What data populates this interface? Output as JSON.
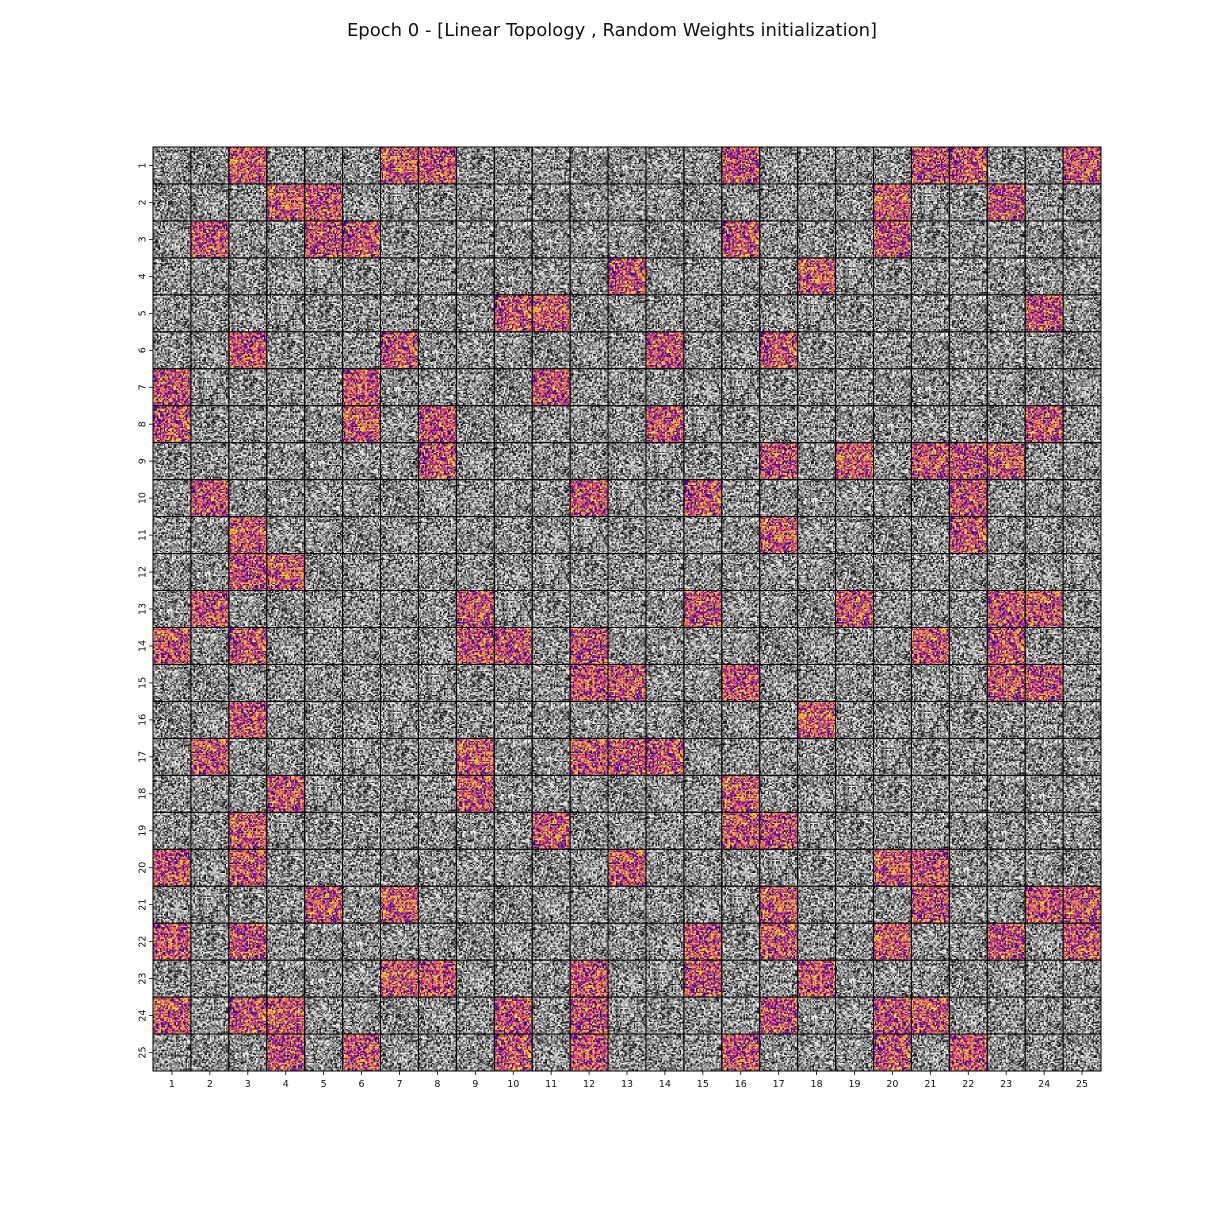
{
  "chart_data": {
    "type": "heatmap",
    "title": "Epoch 0 - [Linear Topology , Random Weights initialization]",
    "rows": 25,
    "cols": 25,
    "x_tick_labels": [
      "1",
      "2",
      "3",
      "4",
      "5",
      "6",
      "7",
      "8",
      "9",
      "10",
      "11",
      "12",
      "13",
      "14",
      "15",
      "16",
      "17",
      "18",
      "19",
      "20",
      "21",
      "22",
      "23",
      "24",
      "25"
    ],
    "y_tick_labels": [
      "1",
      "2",
      "3",
      "4",
      "5",
      "6",
      "7",
      "8",
      "9",
      "10",
      "11",
      "12",
      "13",
      "14",
      "15",
      "16",
      "17",
      "18",
      "19",
      "20",
      "21",
      "22",
      "23",
      "24",
      "25"
    ],
    "cell_pixel_grid": 28,
    "cell_rendering": {
      "default": "grayscale random weights",
      "highlighted": "plasma colormap random weights"
    },
    "highlighted_cells": [
      [
        1,
        3
      ],
      [
        1,
        7
      ],
      [
        1,
        8
      ],
      [
        1,
        16
      ],
      [
        1,
        21
      ],
      [
        1,
        22
      ],
      [
        1,
        25
      ],
      [
        2,
        4
      ],
      [
        2,
        5
      ],
      [
        2,
        20
      ],
      [
        2,
        23
      ],
      [
        3,
        2
      ],
      [
        3,
        5
      ],
      [
        3,
        6
      ],
      [
        3,
        16
      ],
      [
        3,
        20
      ],
      [
        4,
        13
      ],
      [
        4,
        18
      ],
      [
        5,
        10
      ],
      [
        5,
        11
      ],
      [
        5,
        24
      ],
      [
        6,
        3
      ],
      [
        6,
        7
      ],
      [
        6,
        14
      ],
      [
        6,
        17
      ],
      [
        7,
        1
      ],
      [
        7,
        6
      ],
      [
        7,
        11
      ],
      [
        8,
        1
      ],
      [
        8,
        6
      ],
      [
        8,
        8
      ],
      [
        8,
        14
      ],
      [
        8,
        24
      ],
      [
        9,
        8
      ],
      [
        9,
        17
      ],
      [
        9,
        19
      ],
      [
        9,
        21
      ],
      [
        9,
        22
      ],
      [
        9,
        23
      ],
      [
        10,
        2
      ],
      [
        10,
        12
      ],
      [
        10,
        15
      ],
      [
        10,
        22
      ],
      [
        11,
        3
      ],
      [
        11,
        17
      ],
      [
        11,
        22
      ],
      [
        12,
        3
      ],
      [
        12,
        4
      ],
      [
        13,
        2
      ],
      [
        13,
        9
      ],
      [
        13,
        15
      ],
      [
        13,
        19
      ],
      [
        13,
        23
      ],
      [
        13,
        24
      ],
      [
        14,
        1
      ],
      [
        14,
        3
      ],
      [
        14,
        9
      ],
      [
        14,
        10
      ],
      [
        14,
        12
      ],
      [
        14,
        21
      ],
      [
        14,
        23
      ],
      [
        15,
        12
      ],
      [
        15,
        13
      ],
      [
        15,
        16
      ],
      [
        15,
        23
      ],
      [
        15,
        24
      ],
      [
        16,
        3
      ],
      [
        16,
        18
      ],
      [
        17,
        2
      ],
      [
        17,
        9
      ],
      [
        17,
        12
      ],
      [
        17,
        13
      ],
      [
        17,
        14
      ],
      [
        18,
        4
      ],
      [
        18,
        9
      ],
      [
        18,
        16
      ],
      [
        19,
        3
      ],
      [
        19,
        11
      ],
      [
        19,
        16
      ],
      [
        19,
        17
      ],
      [
        20,
        1
      ],
      [
        20,
        3
      ],
      [
        20,
        13
      ],
      [
        20,
        20
      ],
      [
        20,
        21
      ],
      [
        21,
        5
      ],
      [
        21,
        7
      ],
      [
        21,
        17
      ],
      [
        21,
        21
      ],
      [
        21,
        24
      ],
      [
        21,
        25
      ],
      [
        22,
        1
      ],
      [
        22,
        3
      ],
      [
        22,
        15
      ],
      [
        22,
        17
      ],
      [
        22,
        20
      ],
      [
        22,
        23
      ],
      [
        22,
        25
      ],
      [
        23,
        7
      ],
      [
        23,
        8
      ],
      [
        23,
        12
      ],
      [
        23,
        15
      ],
      [
        23,
        18
      ],
      [
        24,
        1
      ],
      [
        24,
        3
      ],
      [
        24,
        4
      ],
      [
        24,
        10
      ],
      [
        24,
        12
      ],
      [
        24,
        17
      ],
      [
        24,
        20
      ],
      [
        24,
        21
      ],
      [
        25,
        4
      ],
      [
        25,
        6
      ],
      [
        25,
        10
      ],
      [
        25,
        12
      ],
      [
        25,
        16
      ],
      [
        25,
        20
      ],
      [
        25,
        22
      ]
    ],
    "colors": {
      "plasma": [
        "#0d0887",
        "#5c01a6",
        "#9c179e",
        "#cc4778",
        "#ed7953",
        "#fdb42f",
        "#f0f921"
      ],
      "gray_low": "#000000",
      "gray_high": "#ffffff",
      "cell_border": "#000000"
    }
  }
}
